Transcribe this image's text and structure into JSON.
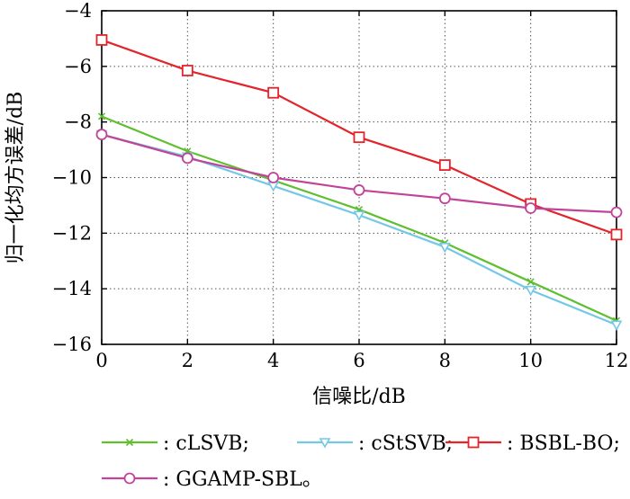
{
  "chart_data": {
    "type": "line",
    "xlabel": "信噪比/dB",
    "ylabel": "归一化均方误差/dB",
    "xlim": [
      0,
      12
    ],
    "ylim": [
      -16,
      -4
    ],
    "x_ticks": [
      "0",
      "2",
      "4",
      "6",
      "8",
      "10",
      "12"
    ],
    "y_ticks": [
      "−4",
      "−6",
      "−8",
      "−10",
      "−12",
      "−14",
      "−16"
    ],
    "grid": true,
    "x": [
      0,
      2,
      4,
      6,
      8,
      10,
      12
    ],
    "series": [
      {
        "name": ": cLSVB;",
        "color": "#5fbf2f",
        "marker": "x",
        "values": [
          -7.8,
          -9.05,
          -10.1,
          -11.15,
          -12.35,
          -13.75,
          -15.15
        ]
      },
      {
        "name": ": cStSVB;",
        "color": "#74c8e6",
        "marker": "triangle-down",
        "values": [
          -8.45,
          -9.25,
          -10.3,
          -11.35,
          -12.5,
          -14.05,
          -15.3
        ]
      },
      {
        "name": ": BSBL-BO;",
        "color": "#e3242b",
        "marker": "square",
        "values": [
          -5.05,
          -6.15,
          -6.95,
          -8.55,
          -9.55,
          -10.95,
          -12.05
        ]
      },
      {
        "name": ": GGAMP-SBL。",
        "color": "#c1449a",
        "marker": "circle",
        "values": [
          -8.45,
          -9.3,
          -10.0,
          -10.45,
          -10.75,
          -11.1,
          -11.25
        ]
      }
    ],
    "legend_position": "bottom"
  }
}
